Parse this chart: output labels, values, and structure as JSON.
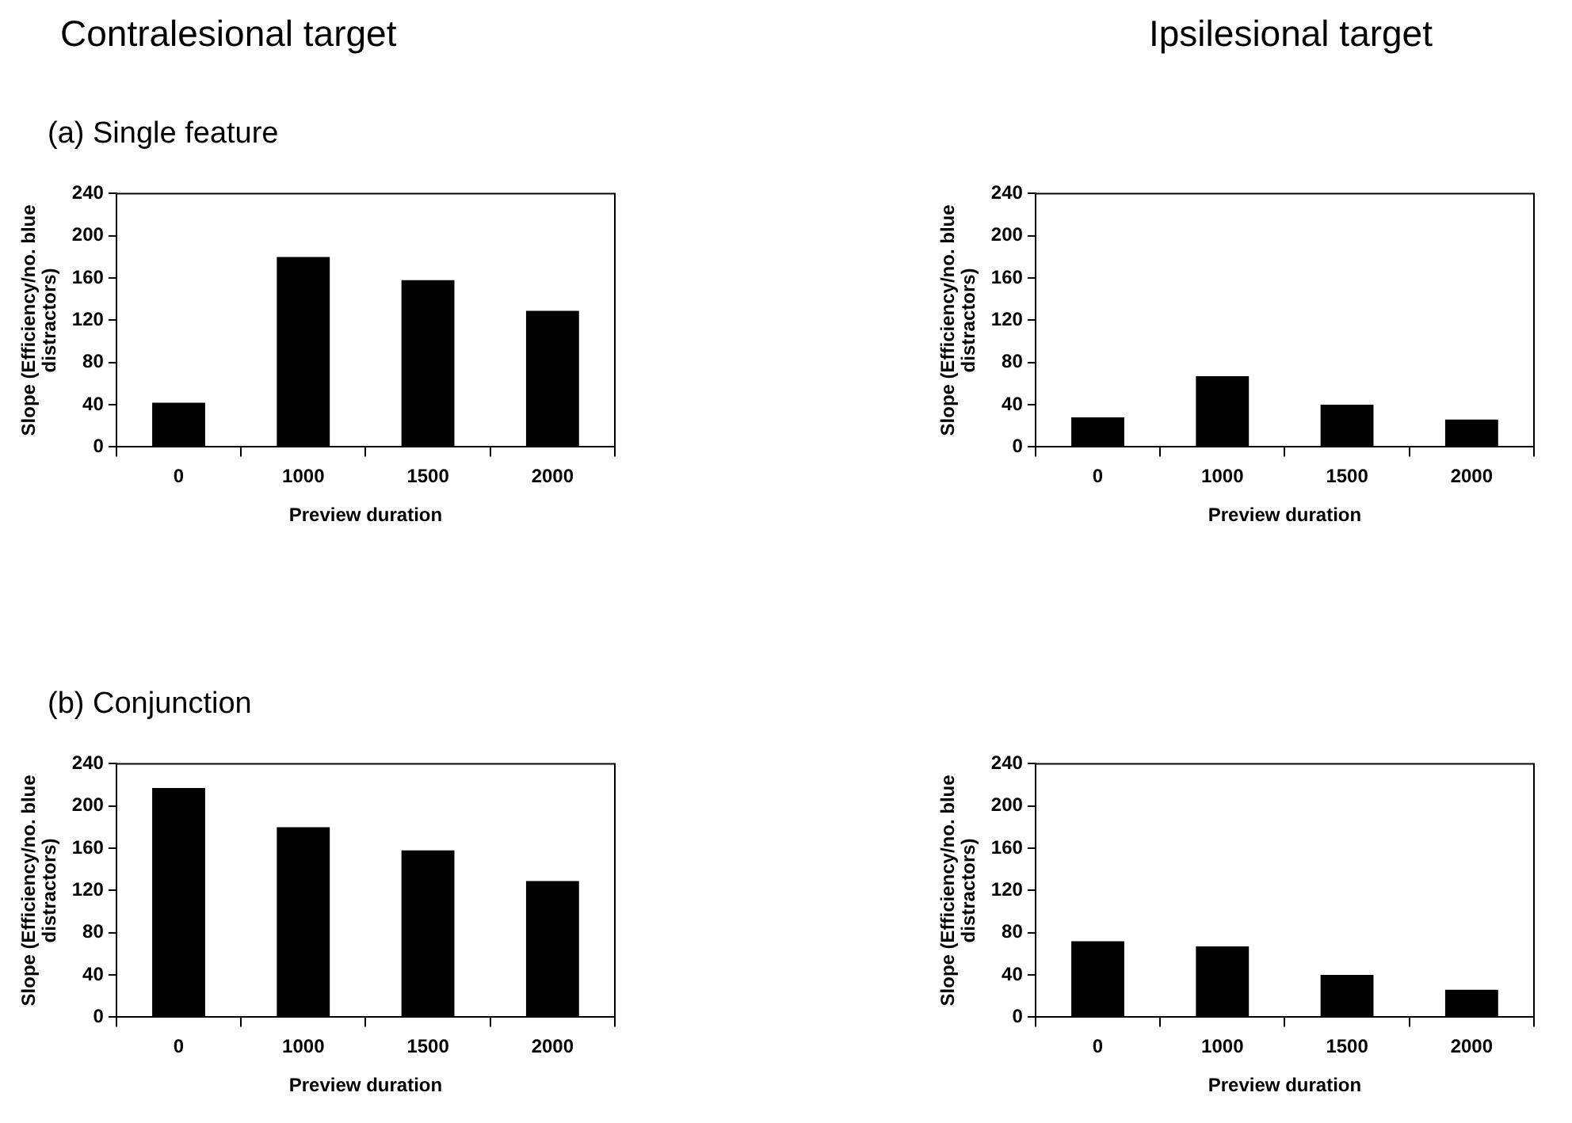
{
  "chart_data": [
    {
      "type": "bar",
      "title": "Contralesional target",
      "subtitle": "(a) Single feature",
      "categories": [
        "0",
        "1000",
        "1500",
        "2000"
      ],
      "values": [
        42,
        180,
        158,
        129
      ],
      "color": "#000000",
      "xlabel": "Preview duration",
      "ylabel": "Slope (Efficiency/no. blue distractors)",
      "ylim": [
        0,
        240
      ],
      "yticks": [
        0,
        40,
        80,
        120,
        160,
        200,
        240
      ],
      "grid": false,
      "legend": false
    },
    {
      "type": "bar",
      "title": "Ipsilesional target",
      "categories": [
        "0",
        "1000",
        "1500",
        "2000"
      ],
      "values": [
        28,
        67,
        40,
        26
      ],
      "color": "#000000",
      "xlabel": "Preview duration",
      "ylabel": "Slope (Efficiency/no. blue distractors)",
      "ylim": [
        0,
        240
      ],
      "yticks": [
        0,
        40,
        80,
        120,
        160,
        200,
        240
      ],
      "grid": false,
      "legend": false
    },
    {
      "type": "bar",
      "subtitle": "(b) Conjunction",
      "categories": [
        "0",
        "1000",
        "1500",
        "2000"
      ],
      "values": [
        217,
        180,
        158,
        129
      ],
      "color": "#000000",
      "xlabel": "Preview duration",
      "ylabel": "Slope (Efficiency/no. blue distractors)",
      "ylim": [
        0,
        240
      ],
      "yticks": [
        0,
        40,
        80,
        120,
        160,
        200,
        240
      ],
      "grid": false,
      "legend": false
    },
    {
      "type": "bar",
      "categories": [
        "0",
        "1000",
        "1500",
        "2000"
      ],
      "values": [
        72,
        67,
        40,
        26
      ],
      "color": "#000000",
      "xlabel": "Preview duration",
      "ylabel": "Slope (Efficiency/no. blue distractors)",
      "ylim": [
        0,
        240
      ],
      "yticks": [
        0,
        40,
        80,
        120,
        160,
        200,
        240
      ],
      "grid": false,
      "legend": false
    }
  ]
}
